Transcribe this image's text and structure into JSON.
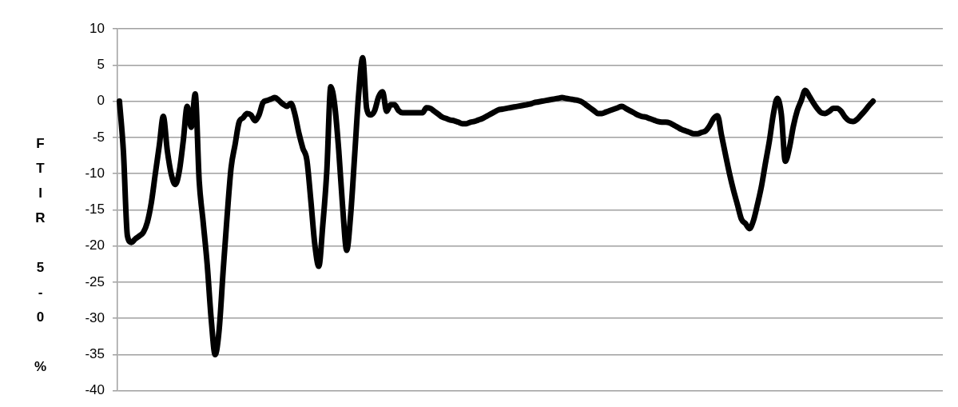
{
  "chart_data": {
    "type": "line",
    "ylabel": "FTIR 5-0 %",
    "categories": [
      null,
      null,
      null,
      null,
      null,
      null,
      null,
      null,
      null,
      null,
      null,
      null,
      null,
      null,
      null,
      null,
      null,
      null,
      null,
      null,
      null,
      null,
      null,
      null,
      null,
      null,
      null,
      null,
      null,
      null,
      null,
      null,
      null,
      null,
      null,
      null,
      null,
      null,
      null,
      null,
      null,
      null,
      null,
      null,
      null,
      null,
      null,
      null,
      null,
      null,
      null,
      null,
      null,
      null,
      null,
      null,
      null,
      null,
      null,
      null,
      null,
      null,
      null,
      null,
      null,
      null,
      null,
      null,
      null,
      null,
      null,
      null,
      null,
      null,
      null,
      null,
      null,
      null,
      null,
      null,
      null,
      null,
      null,
      null,
      null,
      null,
      null,
      null,
      null,
      null,
      null,
      null,
      null,
      null,
      null,
      null,
      null,
      null,
      null,
      null,
      null,
      null,
      null,
      null,
      null,
      null,
      null,
      null,
      null,
      null,
      null,
      null,
      null,
      null,
      null,
      null,
      null,
      null,
      null,
      null,
      null,
      null,
      null,
      null,
      null,
      null,
      null,
      null,
      null,
      null,
      null,
      null,
      null,
      null,
      null,
      null,
      null,
      null,
      null,
      null,
      null,
      null,
      null,
      null,
      null,
      null,
      null,
      null,
      null,
      null,
      null,
      null,
      null,
      null,
      null,
      null,
      null,
      null,
      null,
      null,
      null,
      null,
      null,
      null,
      null,
      null,
      null,
      null,
      null,
      null,
      null,
      null,
      null,
      null,
      null,
      null,
      null,
      null,
      null,
      null,
      null,
      null,
      null,
      null,
      null,
      null,
      null,
      null,
      null,
      null,
      null,
      null,
      null,
      null,
      null,
      null,
      null,
      null,
      null,
      null,
      null,
      null,
      null,
      null,
      null,
      null,
      null
    ],
    "series": [
      {
        "color": "#000000",
        "values": [
          0,
          -7.0,
          -18.6,
          -19.5,
          -19.0,
          -18.6,
          -18.1,
          -16.7,
          -14.0,
          -10.0,
          -6.1,
          -2.1,
          -6.8,
          -10.1,
          -11.5,
          -9.7,
          -5.5,
          -0.7,
          -3.6,
          1.0,
          -11,
          -16.7,
          -22.5,
          -30,
          -35.0,
          -31.6,
          -23.5,
          -15.9,
          -9.2,
          -6.0,
          -2.9,
          -2.3,
          -1.7,
          -1.9,
          -2.7,
          -1.9,
          -0.2,
          0.1,
          0.3,
          0.5,
          0.1,
          -0.4,
          -0.7,
          -0.3,
          -1.8,
          -4.4,
          -6.5,
          -8.1,
          -13.7,
          -19.8,
          -22.8,
          -17.1,
          -9.7,
          2.0,
          -0.6,
          -6.8,
          -14.8,
          -20.6,
          -15.6,
          -7.4,
          1.0,
          6.0,
          -1.0,
          -1.9,
          -1.3,
          0.6,
          1.3,
          -1.4,
          -0.5,
          -0.5,
          -1.3,
          -1.6,
          -1.6,
          -1.6,
          -1.6,
          -1.6,
          -1.6,
          -0.9,
          -1.0,
          -1.4,
          -1.8,
          -2.2,
          -2.4,
          -2.6,
          -2.7,
          -2.9,
          -3.1,
          -3.1,
          -2.9,
          -2.8,
          -2.6,
          -2.4,
          -2.1,
          -1.8,
          -1.5,
          -1.2,
          -1.1,
          -1.0,
          -0.9,
          -0.8,
          -0.7,
          -0.6,
          -0.5,
          -0.4,
          -0.2,
          -0.1,
          0.0,
          0.1,
          0.2,
          0.3,
          0.4,
          0.5,
          0.4,
          0.3,
          0.2,
          0.1,
          -0.1,
          -0.5,
          -0.9,
          -1.3,
          -1.7,
          -1.7,
          -1.5,
          -1.3,
          -1.1,
          -0.9,
          -0.7,
          -1.0,
          -1.3,
          -1.6,
          -1.9,
          -2.1,
          -2.2,
          -2.4,
          -2.6,
          -2.8,
          -2.9,
          -2.9,
          -3.0,
          -3.3,
          -3.6,
          -3.9,
          -4.1,
          -4.3,
          -4.5,
          -4.5,
          -4.3,
          -4.1,
          -3.4,
          -2.4,
          -2.0,
          -4.7,
          -7.4,
          -10.0,
          -12.3,
          -14.3,
          -16.3,
          -16.9,
          -17.6,
          -16.5,
          -14.3,
          -11.8,
          -8.6,
          -5.5,
          -1.8,
          0.4,
          -1.8,
          -8.3,
          -6.5,
          -3.5,
          -1.3,
          0.1,
          1.5,
          0.7,
          -0.2,
          -1.0,
          -1.6,
          -1.7,
          -1.4,
          -1.0,
          -1.0,
          -1.4,
          -2.2,
          -2.7,
          -2.8,
          -2.5,
          -1.9,
          -1.3,
          -0.6,
          0.0,
          null,
          null,
          null,
          null,
          null,
          null,
          null,
          null,
          null,
          null,
          null,
          null,
          null,
          null,
          null,
          null,
          null
        ]
      }
    ],
    "ylim": [
      -40,
      10
    ],
    "yticks": [
      -40,
      -35,
      -30,
      -25,
      -20,
      -15,
      -10,
      -5,
      0,
      5,
      10
    ],
    "grid": "y",
    "tick_labels": "y",
    "marker": "none"
  }
}
